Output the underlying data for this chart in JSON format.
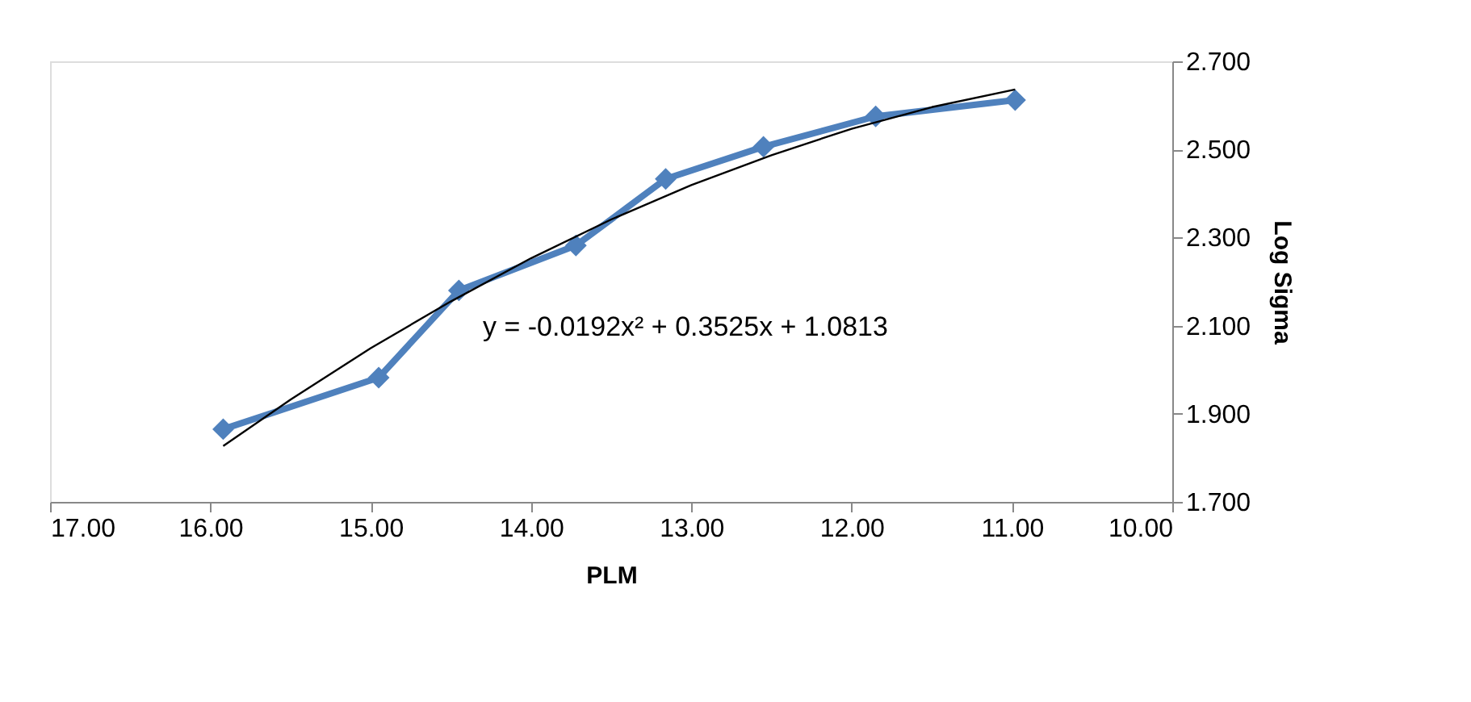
{
  "chart_data": {
    "type": "line",
    "xlabel": "PLM",
    "ylabel": "Log Sigma",
    "x": [
      15.92,
      14.95,
      14.45,
      13.72,
      13.16,
      12.55,
      11.85,
      10.98
    ],
    "series": [
      {
        "color": "#4f81bd",
        "marker": "diamond",
        "values": [
          1.865,
          1.982,
          2.18,
          2.282,
          2.433,
          2.506,
          2.575,
          2.612
        ]
      },
      {
        "color": "#000000",
        "marker": "none",
        "x": [
          15.92,
          15.5,
          15.0,
          14.5,
          14.0,
          13.5,
          13.0,
          12.5,
          12.0,
          11.5,
          10.98
        ],
        "values": [
          1.827,
          1.932,
          2.049,
          2.155,
          2.253,
          2.341,
          2.419,
          2.487,
          2.547,
          2.596,
          2.636
        ]
      }
    ],
    "xlim": [
      17,
      10
    ],
    "xticks": [
      {
        "value": 17,
        "label": "17.00"
      },
      {
        "value": 16,
        "label": "16.00"
      },
      {
        "value": 15,
        "label": "15.00"
      },
      {
        "value": 14,
        "label": "14.00"
      },
      {
        "value": 13,
        "label": "13.00"
      },
      {
        "value": 12,
        "label": "12.00"
      },
      {
        "value": 11,
        "label": "11.00"
      },
      {
        "value": 10,
        "label": "10.00"
      }
    ],
    "ylim": [
      1.7,
      2.7
    ],
    "yticks": [
      {
        "value": 1.7,
        "label": "1.700"
      },
      {
        "value": 1.9,
        "label": "1.900"
      },
      {
        "value": 2.1,
        "label": "2.100"
      },
      {
        "value": 2.3,
        "label": "2.300"
      },
      {
        "value": 2.5,
        "label": "2.500"
      },
      {
        "value": 2.7,
        "label": "2.700"
      }
    ],
    "annotations": [
      "y = -0.0192x² + 0.3525x + 1.0813"
    ],
    "tick_labels": true,
    "grid": false,
    "line_style": "solid"
  }
}
